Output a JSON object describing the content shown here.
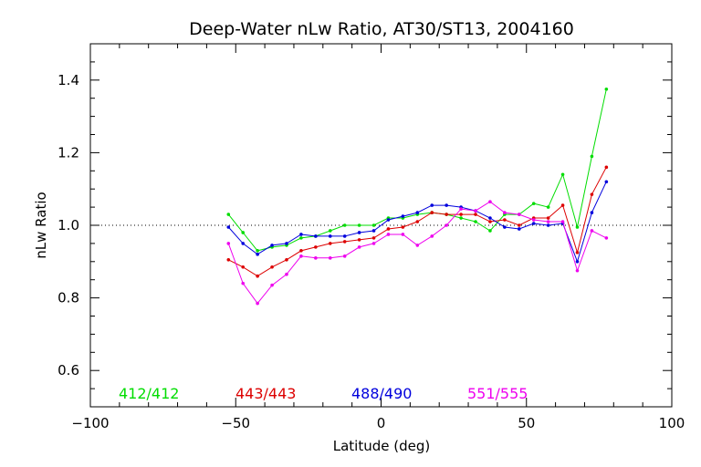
{
  "chart_data": {
    "type": "line",
    "title": "Deep-Water nLw Ratio, AT30/ST13, 2004160",
    "xlabel": "Latitude (deg)",
    "ylabel": "nLw Ratio",
    "xlim": [
      -100,
      100
    ],
    "ylim": [
      0.5,
      1.5
    ],
    "xticks": [
      -100,
      -50,
      0,
      50,
      100
    ],
    "yticks": [
      0.6,
      0.8,
      1.0,
      1.2,
      1.4
    ],
    "xtick_labels": [
      "−100",
      "−50",
      "0",
      "50",
      "100"
    ],
    "ytick_labels": [
      "0.6",
      "0.8",
      "1.0",
      "1.2",
      "1.4"
    ],
    "reference_line": 1.0,
    "grid": false,
    "x": [
      -52.5,
      -47.5,
      -42.5,
      -37.5,
      -32.5,
      -27.5,
      -22.5,
      -17.5,
      -12.5,
      -7.5,
      -2.5,
      2.5,
      7.5,
      12.5,
      17.5,
      22.5,
      27.5,
      32.5,
      37.5,
      42.5,
      47.5,
      52.5,
      57.5,
      62.5,
      67.5,
      72.5,
      77.5
    ],
    "series": [
      {
        "name": "412/412",
        "color": "#00dd00",
        "values": [
          1.03,
          0.98,
          0.93,
          0.94,
          0.945,
          0.965,
          0.97,
          0.985,
          1.0,
          1.0,
          1.0,
          1.02,
          1.02,
          1.03,
          1.035,
          1.03,
          1.02,
          1.01,
          0.985,
          1.03,
          1.03,
          1.06,
          1.05,
          1.14,
          0.995,
          1.19,
          1.375
        ]
      },
      {
        "name": "443/443",
        "color": "#dd0000",
        "values": [
          0.905,
          0.885,
          0.86,
          0.885,
          0.905,
          0.93,
          0.94,
          0.95,
          0.955,
          0.96,
          0.965,
          0.99,
          0.995,
          1.01,
          1.035,
          1.03,
          1.03,
          1.03,
          1.01,
          1.015,
          1.0,
          1.02,
          1.02,
          1.055,
          0.925,
          1.085,
          1.16
        ]
      },
      {
        "name": "488/490",
        "color": "#0000dd",
        "values": [
          0.995,
          0.95,
          0.92,
          0.945,
          0.95,
          0.975,
          0.97,
          0.97,
          0.97,
          0.98,
          0.985,
          1.015,
          1.025,
          1.035,
          1.055,
          1.055,
          1.05,
          1.04,
          1.02,
          0.995,
          0.99,
          1.005,
          1.0,
          1.005,
          0.9,
          1.035,
          1.12
        ]
      },
      {
        "name": "551/555",
        "color": "#ee00ee",
        "values": [
          0.95,
          0.84,
          0.785,
          0.835,
          0.865,
          0.915,
          0.91,
          0.91,
          0.915,
          0.94,
          0.95,
          0.975,
          0.975,
          0.945,
          0.97,
          1.0,
          1.045,
          1.04,
          1.065,
          1.035,
          1.03,
          1.015,
          1.01,
          1.01,
          0.875,
          0.985,
          0.965
        ]
      }
    ]
  }
}
